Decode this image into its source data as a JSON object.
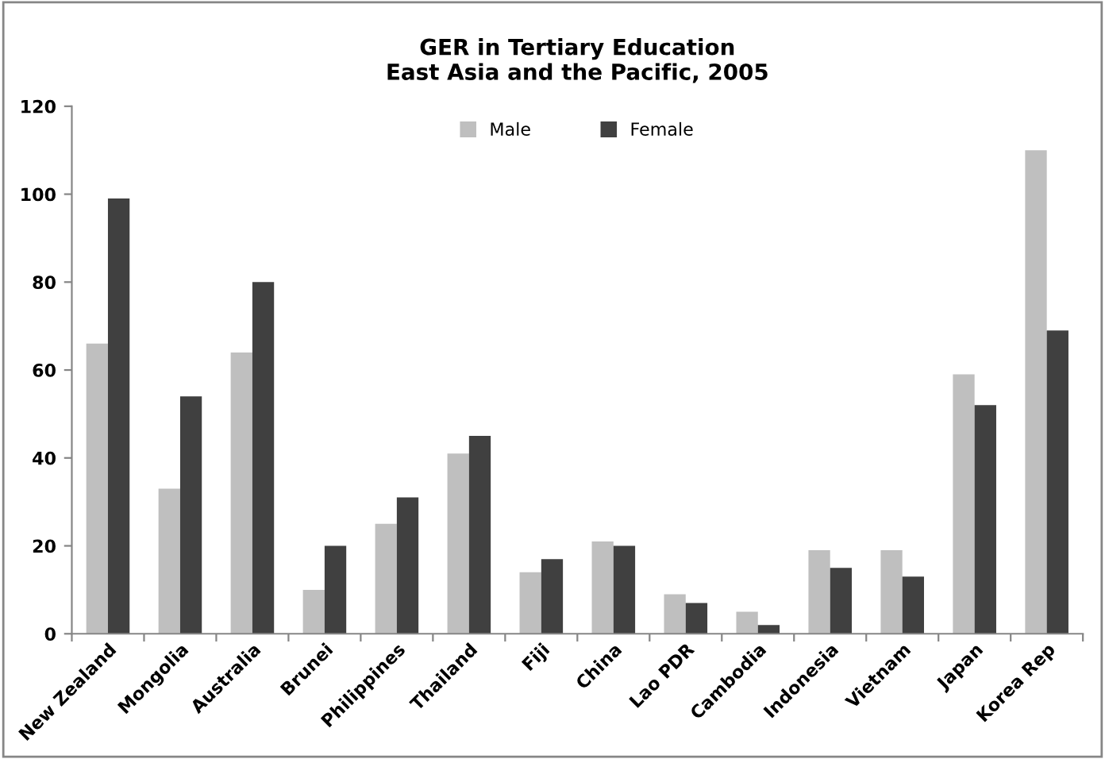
{
  "chart_data": {
    "type": "bar",
    "title": "GER in Tertiary Education\nEast Asia and the Pacific, 2005",
    "categories": [
      "New Zealand",
      "Mongolia",
      "Australia",
      "Brunei",
      "Philippines",
      "Thailand",
      "Fiji",
      "China",
      "Lao PDR",
      "Cambodia",
      "Indonesia",
      "Vietnam",
      "Japan",
      "Korea Rep"
    ],
    "series": [
      {
        "name": "Male",
        "color": "#bfbfbf",
        "values": [
          66,
          33,
          64,
          10,
          25,
          41,
          14,
          21,
          9,
          5,
          19,
          19,
          59,
          110
        ]
      },
      {
        "name": "Female",
        "color": "#404040",
        "values": [
          99,
          54,
          80,
          20,
          31,
          45,
          17,
          20,
          7,
          2,
          15,
          13,
          52,
          69
        ]
      }
    ],
    "ylim": [
      0,
      120
    ],
    "yticks": [
      0,
      20,
      40,
      60,
      80,
      100,
      120
    ],
    "grid": false,
    "legend": "top"
  }
}
